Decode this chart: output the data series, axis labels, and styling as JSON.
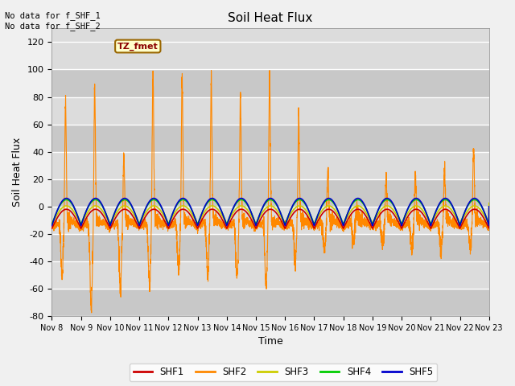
{
  "title": "Soil Heat Flux",
  "ylabel": "Soil Heat Flux",
  "xlabel": "Time",
  "ylim": [
    -80,
    130
  ],
  "bg_color": "#dcdcdc",
  "plot_bg_color": "#dcdcdc",
  "annotation_top": "No data for f_SHF_1\nNo data for f_SHF_2",
  "tz_label": "TZ_fmet",
  "xtick_labels": [
    "Nov 8",
    "Nov 9",
    "Nov 10",
    "Nov 11",
    "Nov 12",
    "Nov 13",
    "Nov 14",
    "Nov 15",
    "Nov 16",
    "Nov 17",
    "Nov 18",
    "Nov 19",
    "Nov 20",
    "Nov 21",
    "Nov 22",
    "Nov 23"
  ],
  "ytick_labels": [
    -80,
    -60,
    -40,
    -20,
    0,
    20,
    40,
    60,
    80,
    100,
    120
  ],
  "series_colors": {
    "SHF1": "#cc0000",
    "SHF2": "#ff8800",
    "SHF3": "#cccc00",
    "SHF4": "#00cc00",
    "SHF5": "#0000cc"
  },
  "legend_labels": [
    "SHF1",
    "SHF2",
    "SHF3",
    "SHF4",
    "SHF5"
  ],
  "legend_colors": [
    "#cc0000",
    "#ff8800",
    "#cccc00",
    "#00cc00",
    "#0000cc"
  ],
  "shf2_spike_amplitudes": [
    87,
    98,
    45,
    108,
    103,
    104,
    92,
    109,
    75,
    35,
    10,
    30,
    33,
    40,
    53
  ],
  "shf2_neg_dip_amplitudes": [
    40,
    63,
    50,
    46,
    35,
    40,
    40,
    45,
    30,
    20,
    15,
    18,
    20,
    22,
    20
  ],
  "grid_color": "#c8c8c8",
  "stripe_color": "#d0d0d0"
}
